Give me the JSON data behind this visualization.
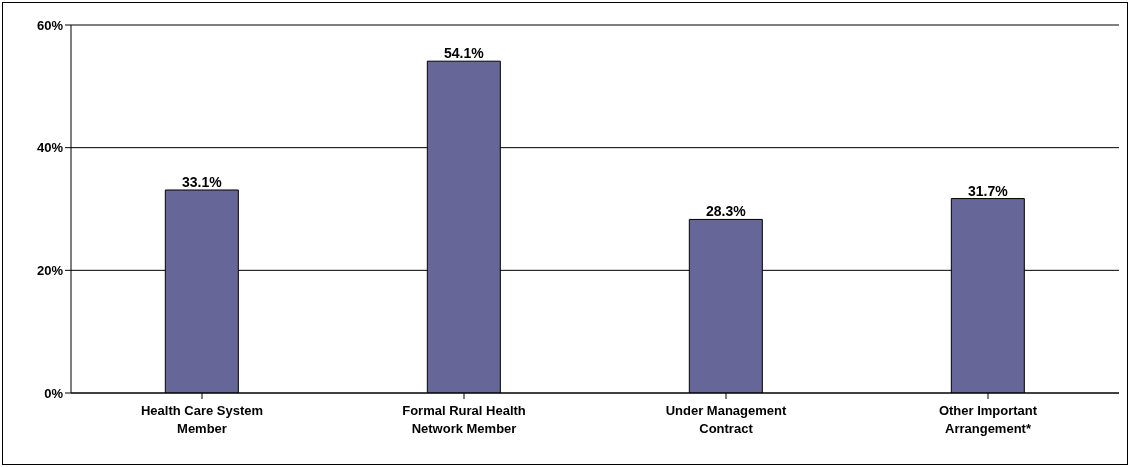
{
  "chart_data": {
    "type": "bar",
    "categories": [
      "Health Care System Member",
      "Formal Rural Health Network Member",
      "Under Management Contract",
      "Other Important Arrangement*"
    ],
    "values": [
      33.1,
      54.1,
      28.3,
      31.7
    ],
    "value_labels": [
      "33.1%",
      "54.1%",
      "28.3%",
      "31.7%"
    ],
    "color": "#666699",
    "ylim": [
      0,
      60
    ],
    "yticks": [
      {
        "value": 0,
        "label": "0%"
      },
      {
        "value": 20,
        "label": "20%"
      },
      {
        "value": 40,
        "label": "40%"
      },
      {
        "value": 60,
        "label": "60%"
      }
    ],
    "grid": "y"
  }
}
